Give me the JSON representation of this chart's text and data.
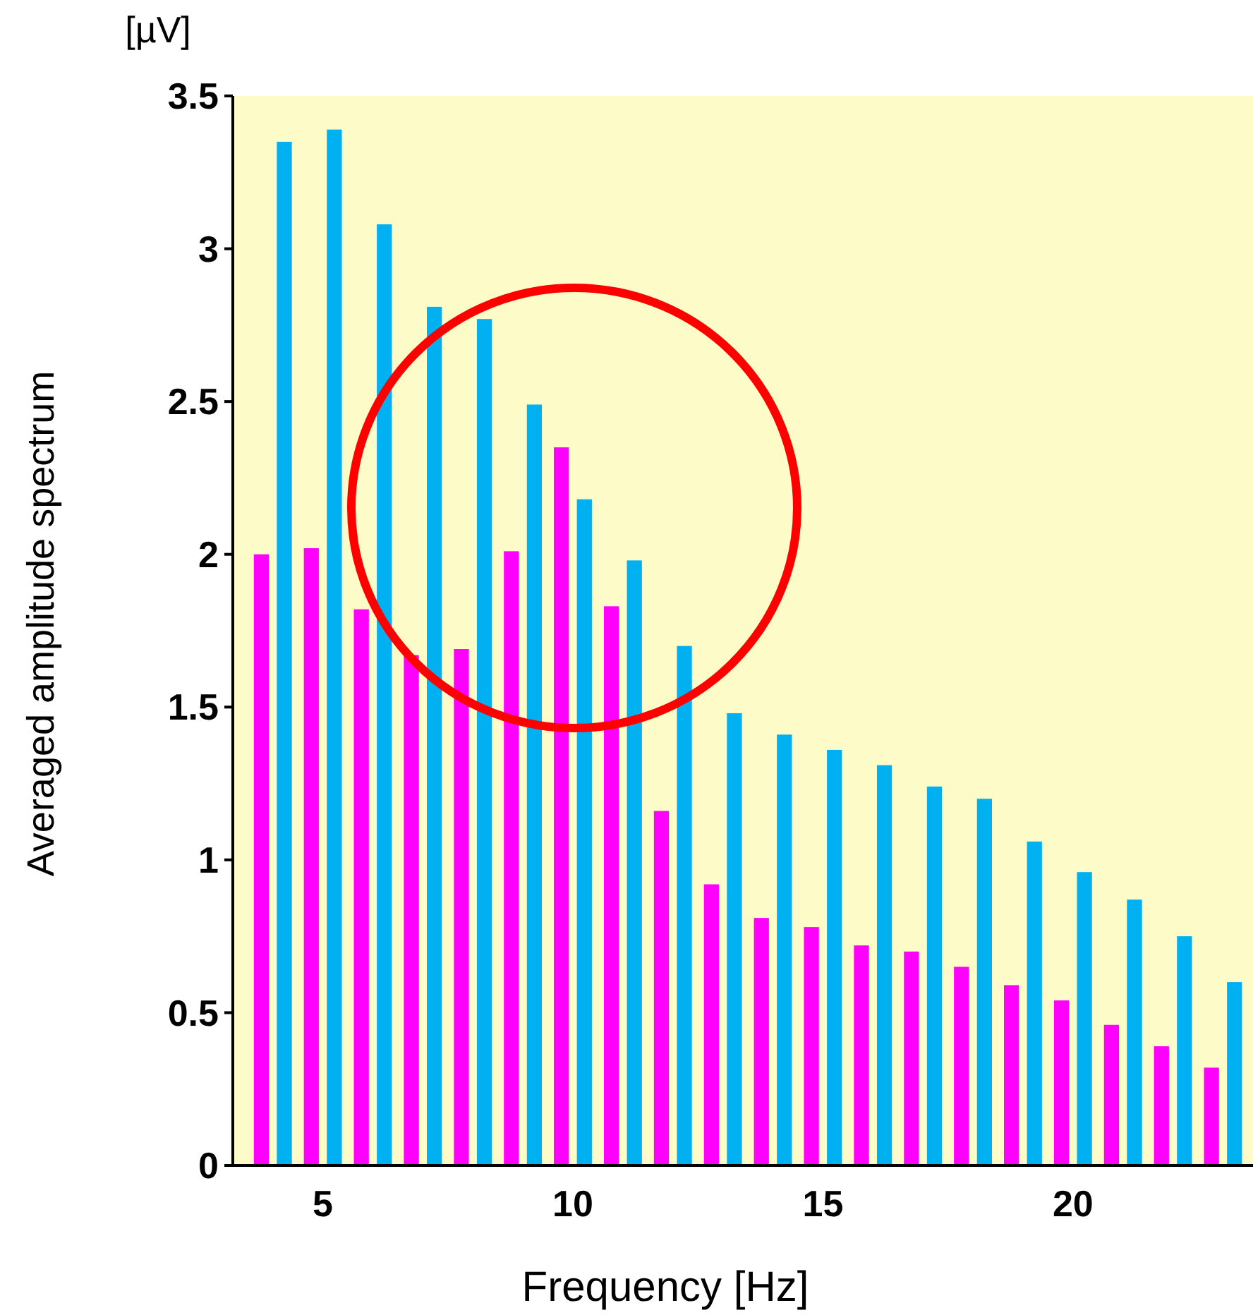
{
  "chart_data": {
    "type": "bar",
    "xlabel": "Frequency [Hz]",
    "ylabel": "Averaged amplitude spectrum",
    "annotations": [
      "[µV]"
    ],
    "x": [
      4,
      5,
      6,
      7,
      8,
      9,
      10,
      11,
      12,
      13,
      14,
      15,
      16,
      17,
      18,
      19,
      20,
      21,
      22,
      23
    ],
    "series": [
      {
        "color": "#ff00ff",
        "values": [
          2.0,
          2.02,
          1.82,
          1.67,
          1.69,
          2.01,
          2.35,
          1.83,
          1.16,
          0.92,
          0.81,
          0.78,
          0.72,
          0.7,
          0.65,
          0.59,
          0.54,
          0.46,
          0.39,
          0.32
        ]
      },
      {
        "color": "#00b0f0",
        "values": [
          3.35,
          3.39,
          3.08,
          2.81,
          2.77,
          2.49,
          2.18,
          1.98,
          1.7,
          1.48,
          1.41,
          1.36,
          1.31,
          1.24,
          1.2,
          1.06,
          0.96,
          0.87,
          0.75,
          0.6
        ]
      }
    ],
    "xlim": [
      3.2,
      23.6
    ],
    "xticks": [
      5,
      10,
      15,
      20
    ],
    "ylim": [
      0,
      3.5
    ],
    "yticks": [
      0,
      0.5,
      1,
      1.5,
      2,
      2.5,
      3,
      3.5
    ],
    "grid": false
  }
}
